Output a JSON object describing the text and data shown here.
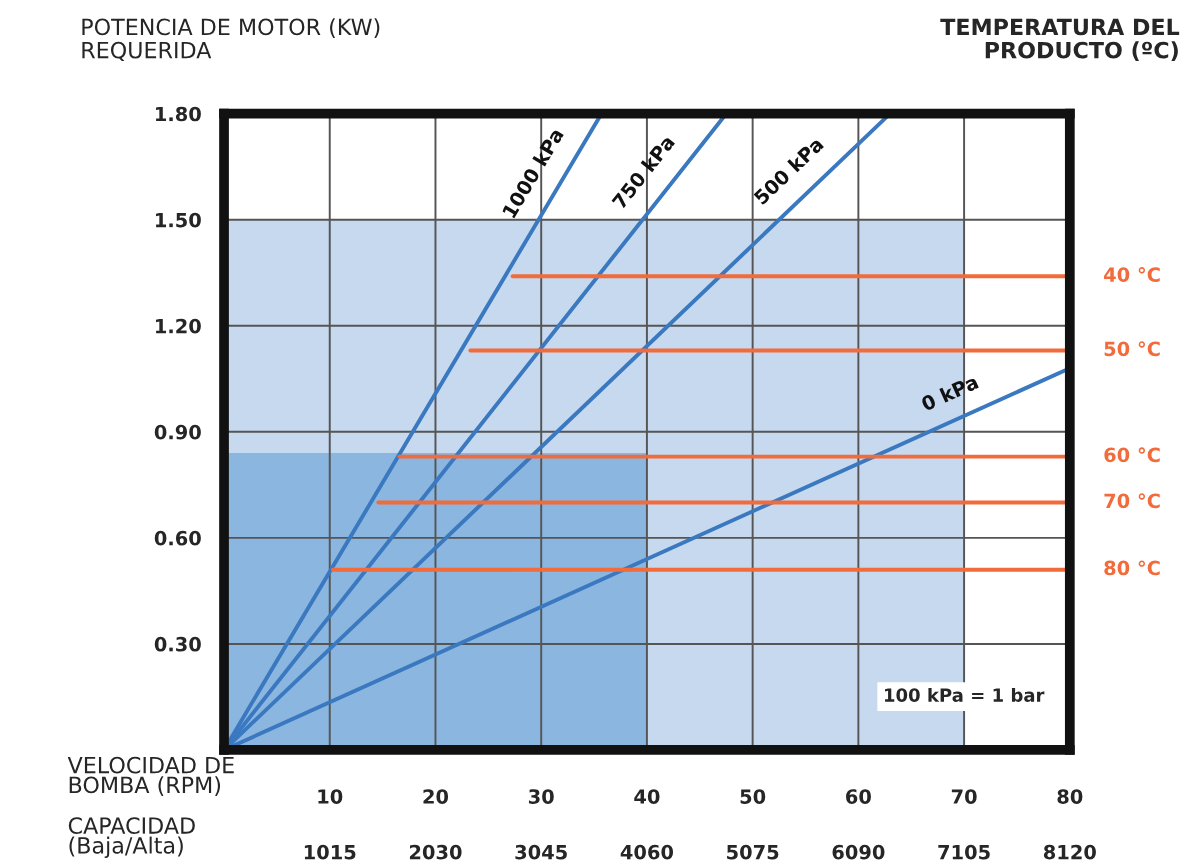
{
  "chart_data": {
    "type": "line",
    "ylabel": "POTENCIA DE MOTOR (KW)\nREQUERIDA",
    "y2label": "TEMPERATURA DEL\nPRODUCTO (ºC)",
    "xlabel": "VELOCIDAD DE\nBOMBA (RPM)",
    "x2label": "CAPACIDAD\n(Baja/Alta)",
    "xlim": [
      0,
      80
    ],
    "xticks": [
      10,
      20,
      30,
      40,
      50,
      60,
      70,
      80
    ],
    "x2lim": [
      0,
      8120
    ],
    "x2ticks": [
      1015,
      2030,
      3045,
      4060,
      5075,
      6090,
      7105,
      8120
    ],
    "ylim": [
      0,
      1.8
    ],
    "yticks": [
      {
        "value": 0.3,
        "label": "0.30"
      },
      {
        "value": 0.6,
        "label": "0.60"
      },
      {
        "value": 0.9,
        "label": "0.90"
      },
      {
        "value": 1.2,
        "label": "1.20"
      },
      {
        "value": 1.5,
        "label": "1.50"
      },
      {
        "value": 1.8,
        "label": "1.80"
      }
    ],
    "grid": true,
    "legend": false,
    "marker": "none",
    "line_style": "solid",
    "series": [
      {
        "type": "area",
        "color": "#c6d9ef",
        "x": [
          0,
          70
        ],
        "values": [
          1.5,
          1.5
        ]
      },
      {
        "type": "area",
        "color": "#8ab6e0",
        "x": [
          0,
          40
        ],
        "values": [
          0.84,
          0.84
        ]
      },
      {
        "name": "1000 kPa",
        "color": "#3a78c0",
        "x": [
          0,
          35.7
        ],
        "values": [
          0,
          1.8
        ]
      },
      {
        "name": "750 kPa",
        "color": "#3a78c0",
        "x": [
          0,
          47.5
        ],
        "values": [
          0,
          1.8
        ]
      },
      {
        "name": "500 kPa",
        "color": "#3a78c0",
        "x": [
          0,
          63
        ],
        "values": [
          0,
          1.8
        ]
      },
      {
        "name": "0 kPa",
        "color": "#3a78c0",
        "x": [
          0,
          80
        ],
        "values": [
          0,
          1.08
        ]
      },
      {
        "name": "40 °C",
        "color": "#f26b3a",
        "x": [
          27.3,
          80
        ],
        "values": [
          1.34,
          1.34
        ]
      },
      {
        "name": "50 °C",
        "color": "#f26b3a",
        "x": [
          23.3,
          80
        ],
        "values": [
          1.13,
          1.13
        ]
      },
      {
        "name": "60 °C",
        "color": "#f26b3a",
        "x": [
          16.6,
          80
        ],
        "values": [
          0.83,
          0.83
        ]
      },
      {
        "name": "70 °C",
        "color": "#f26b3a",
        "x": [
          14.6,
          80
        ],
        "values": [
          0.7,
          0.7
        ]
      },
      {
        "name": "80 °C",
        "color": "#f26b3a",
        "x": [
          10.3,
          80
        ],
        "values": [
          0.51,
          0.51
        ]
      }
    ],
    "annotations": [
      "100 kPa = 1 bar"
    ]
  }
}
